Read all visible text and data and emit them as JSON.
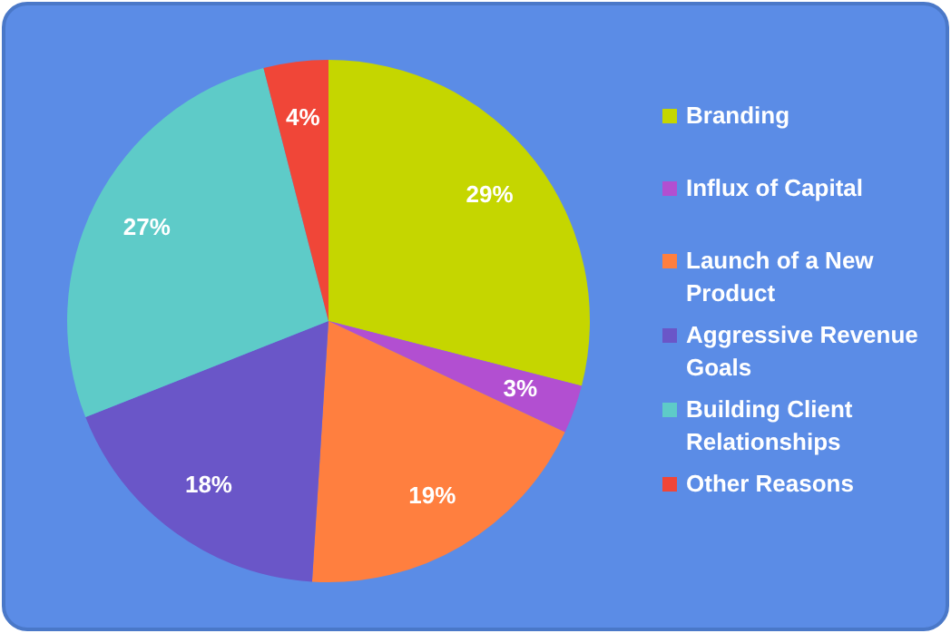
{
  "chart_data": {
    "type": "pie",
    "categories": [
      "Branding",
      "Influx of Capital",
      "Launch of a New Product",
      "Aggressive Revenue Goals",
      "Building Client Relationships",
      "Other Reasons"
    ],
    "values": [
      29,
      3,
      19,
      18,
      27,
      4
    ],
    "colors": [
      "#c5d600",
      "#b24fd1",
      "#ff7f3f",
      "#6a56c8",
      "#5ecbc8",
      "#f04638"
    ],
    "value_labels": [
      "29%",
      "3%",
      "19%",
      "18%",
      "27%",
      "4%"
    ],
    "legend": "right"
  }
}
